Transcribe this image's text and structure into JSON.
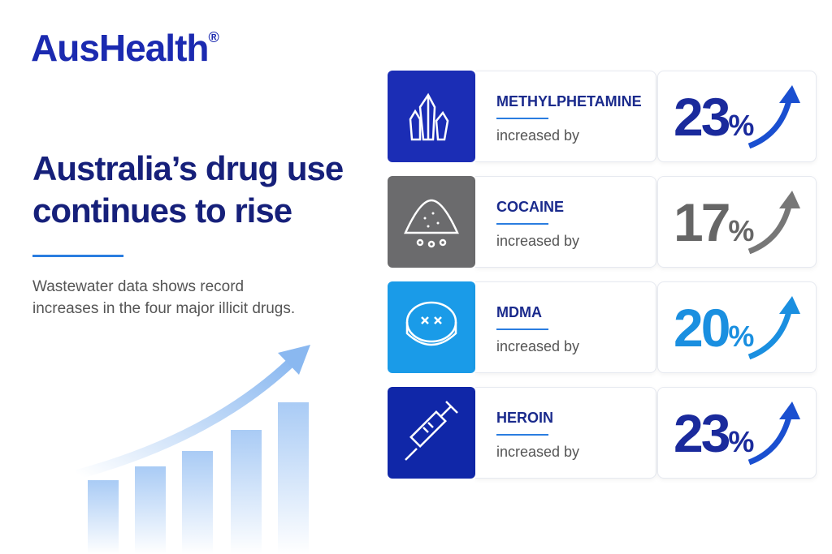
{
  "brand": {
    "name": "AusHealth",
    "mark": "®"
  },
  "headline": {
    "title": "Australia’s drug use continues to rise",
    "subtitle": "Wastewater data shows record increases in the four major illicit drugs."
  },
  "rows": [
    {
      "drug": "METHYLPHETAMINE",
      "caption": "increased by",
      "value": "23",
      "unit": "%"
    },
    {
      "drug": "COCAINE",
      "caption": "increased by",
      "value": "17",
      "unit": "%"
    },
    {
      "drug": "MDMA",
      "caption": "increased by",
      "value": "20",
      "unit": "%"
    },
    {
      "drug": "HEROIN",
      "caption": "increased by",
      "value": "23",
      "unit": "%"
    }
  ]
}
